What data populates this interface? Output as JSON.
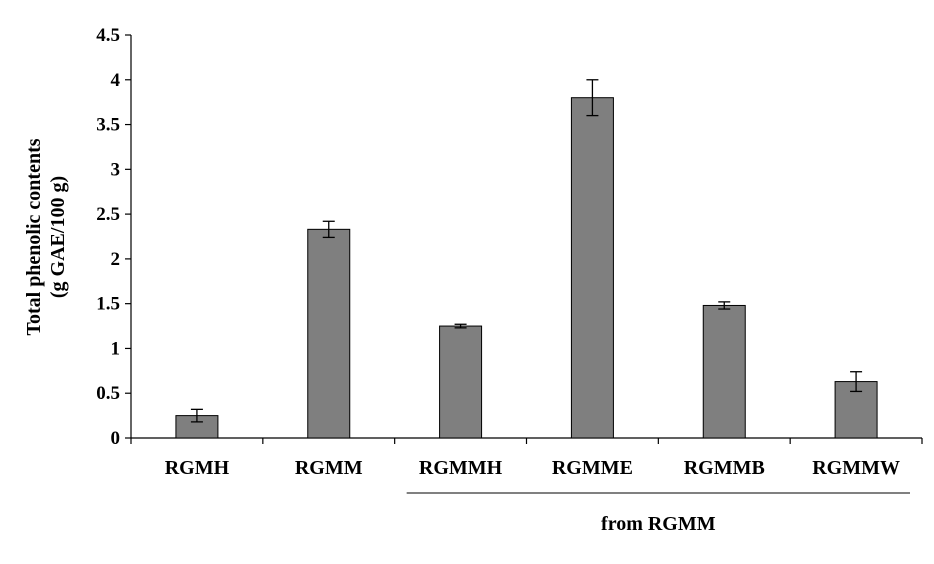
{
  "chart_data": {
    "type": "bar",
    "categories": [
      "RGMH",
      "RGMM",
      "RGMMH",
      "RGMME",
      "RGMMB",
      "RGMMW"
    ],
    "values": [
      0.25,
      2.33,
      1.25,
      3.8,
      1.48,
      0.63
    ],
    "errors": [
      0.07,
      0.09,
      0.02,
      0.2,
      0.04,
      0.11
    ],
    "ylabel_line1": "Total phenolic contents",
    "ylabel_line2": "(g GAE/100 g)",
    "ylim": [
      0,
      4.5
    ],
    "yticks": [
      "0",
      "0.5",
      "1",
      "1.5",
      "2",
      "2.5",
      "3",
      "3.5",
      "4",
      "4.5"
    ],
    "group_label": "from RGMM",
    "group_categories": [
      "RGMMH",
      "RGMME",
      "RGMMB",
      "RGMMW"
    ],
    "grid": false,
    "bar_color": "#7f7f7f",
    "bar_stroke": "#000000"
  }
}
